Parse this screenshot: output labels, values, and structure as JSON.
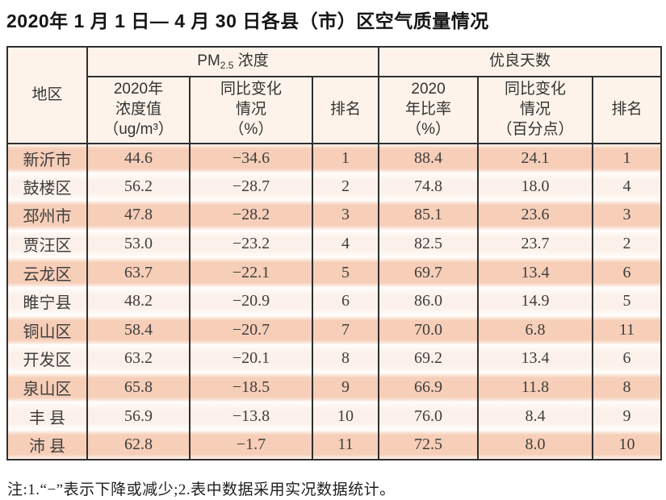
{
  "title": "2020年 1 月 1 日— 4 月 30 日各县（市）区空气质量情况",
  "note": "注:1.“−”表示下降或减少;2.表中数据采用实况数据统计。",
  "colors": {
    "row_band": "#f7ceb8",
    "row_light": "#fcf1ea",
    "header_bg": "#fdf3ea",
    "border": "#2f2f2f"
  },
  "table": {
    "header": {
      "region": "地区",
      "pm25_group_prefix": "PM",
      "pm25_group_sub": "2.5",
      "pm25_group_suffix": " 浓度",
      "good_days_group": "优良天数",
      "pm25_value": "2020年\n浓度值\n（ug/m³）",
      "pm25_change": "同比变化\n情况\n（%）",
      "pm25_rank": "排名",
      "good_ratio": "2020\n年比率\n（%）",
      "good_change": "同比变化\n情况\n（百分点）",
      "good_rank": "排名"
    },
    "rows": [
      {
        "region": "新沂市",
        "pm25_value": "44.6",
        "pm25_change": "−34.6",
        "pm25_rank": "1",
        "good_ratio": "88.4",
        "good_change": "24.1",
        "good_rank": "1"
      },
      {
        "region": "鼓楼区",
        "pm25_value": "56.2",
        "pm25_change": "−28.7",
        "pm25_rank": "2",
        "good_ratio": "74.8",
        "good_change": "18.0",
        "good_rank": "4"
      },
      {
        "region": "邳州市",
        "pm25_value": "47.8",
        "pm25_change": "−28.2",
        "pm25_rank": "3",
        "good_ratio": "85.1",
        "good_change": "23.6",
        "good_rank": "3"
      },
      {
        "region": "贾汪区",
        "pm25_value": "53.0",
        "pm25_change": "−23.2",
        "pm25_rank": "4",
        "good_ratio": "82.5",
        "good_change": "23.7",
        "good_rank": "2"
      },
      {
        "region": "云龙区",
        "pm25_value": "63.7",
        "pm25_change": "−22.1",
        "pm25_rank": "5",
        "good_ratio": "69.7",
        "good_change": "13.4",
        "good_rank": "6"
      },
      {
        "region": "睢宁县",
        "pm25_value": "48.2",
        "pm25_change": "−20.9",
        "pm25_rank": "6",
        "good_ratio": "86.0",
        "good_change": "14.9",
        "good_rank": "5"
      },
      {
        "region": "铜山区",
        "pm25_value": "58.4",
        "pm25_change": "−20.7",
        "pm25_rank": "7",
        "good_ratio": "70.0",
        "good_change": "6.8",
        "good_rank": "11"
      },
      {
        "region": "开发区",
        "pm25_value": "63.2",
        "pm25_change": "−20.1",
        "pm25_rank": "8",
        "good_ratio": "69.2",
        "good_change": "13.4",
        "good_rank": "6"
      },
      {
        "region": "泉山区",
        "pm25_value": "65.8",
        "pm25_change": "−18.5",
        "pm25_rank": "9",
        "good_ratio": "66.9",
        "good_change": "11.8",
        "good_rank": "8"
      },
      {
        "region": "丰 县",
        "pm25_value": "56.9",
        "pm25_change": "−13.8",
        "pm25_rank": "10",
        "good_ratio": "76.0",
        "good_change": "8.4",
        "good_rank": "9"
      },
      {
        "region": "沛 县",
        "pm25_value": "62.8",
        "pm25_change": "−1.7",
        "pm25_rank": "11",
        "good_ratio": "72.5",
        "good_change": "8.0",
        "good_rank": "10"
      }
    ]
  }
}
